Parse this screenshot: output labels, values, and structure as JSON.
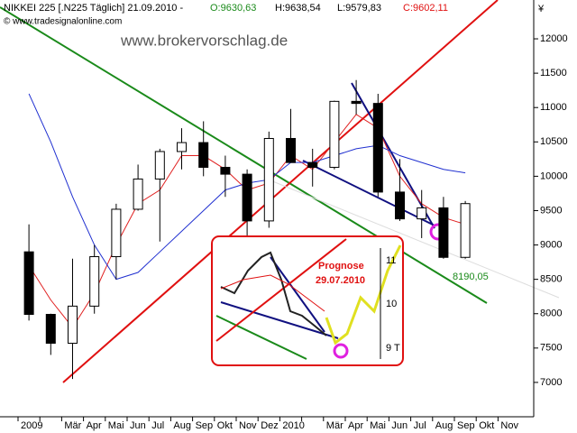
{
  "chart_data": {
    "type": "candlestick",
    "title": "NIKKEI 225 [.N225  Täglich] 21.09.2010 -",
    "ohlc_labels": [
      "O:9630,63",
      "H:9638,54",
      "L:9579,83",
      "C:9602,11"
    ],
    "copyright": "© www.tradesignalonline.com",
    "watermark": "www.brokervorschlag.de",
    "currency": "¥",
    "annotations": [
      "8190,05",
      "Prognose",
      "29.07.2010",
      "11",
      "10",
      "9 T"
    ],
    "categories": [
      "2009",
      null,
      "Mär",
      "Apr",
      "Mai",
      "Jun",
      "Jul",
      "Aug",
      "Sep",
      "Okt",
      "Nov",
      "Dez",
      "2010",
      null,
      "Mär",
      "Apr",
      "Mai",
      "Jun",
      "Jul",
      "Aug",
      "Sep",
      "Okt",
      "Nov"
    ],
    "open": [
      8900,
      7990,
      7570,
      8110,
      8830,
      9520,
      9960,
      10360,
      10490,
      10130,
      10030,
      9350,
      10550,
      10200,
      10130,
      11090,
      11060,
      9770,
      9380,
      9540,
      8820,
      null,
      null
    ],
    "high": [
      9300,
      8000,
      8800,
      9000,
      9600,
      10170,
      10400,
      10700,
      10800,
      10300,
      10100,
      10650,
      10980,
      10400,
      11100,
      11400,
      11200,
      10250,
      9800,
      9700,
      9640,
      null,
      null
    ],
    "low": [
      7900,
      7400,
      7050,
      8000,
      8500,
      9500,
      9050,
      10100,
      10000,
      9700,
      9100,
      9250,
      10200,
      9850,
      10100,
      10900,
      9700,
      9350,
      9100,
      8800,
      8800,
      null,
      null
    ],
    "close": [
      7990,
      7570,
      8110,
      8830,
      9520,
      9960,
      10360,
      10490,
      10130,
      10030,
      9350,
      10550,
      10200,
      10130,
      11090,
      11060,
      9770,
      9380,
      9540,
      8820,
      9602,
      null,
      null
    ],
    "series": [
      {
        "color": "#e02020",
        "values": [
          8700,
          8200,
          7800,
          8300,
          9000,
          9600,
          9800,
          10300,
          10300,
          10100,
          9800,
          9900,
          10300,
          10100,
          10500,
          10900,
          10700,
          10000,
          9600,
          9400,
          9300,
          null,
          null
        ]
      },
      {
        "color": "#2030d0",
        "values": [
          11200,
          10500,
          9700,
          9000,
          8500,
          8600,
          8900,
          9200,
          9500,
          9800,
          9900,
          9950,
          10200,
          10200,
          10300,
          10400,
          10450,
          10300,
          10200,
          10100,
          10050,
          null,
          null
        ]
      }
    ],
    "ylim": [
      6500,
      12565
    ],
    "yticks": [
      7000,
      7500,
      8000,
      8500,
      9000,
      9500,
      10000,
      10500,
      11000,
      11500,
      12000
    ],
    "grid": false
  }
}
